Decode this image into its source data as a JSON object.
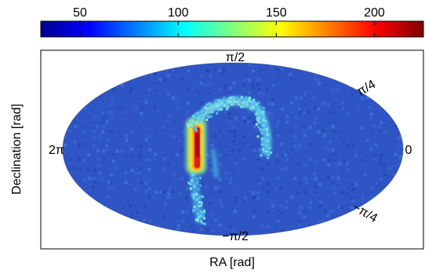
{
  "chart_data": {
    "type": "heatmap",
    "projection": "mollweide",
    "title": "",
    "xlabel": "RA [rad]",
    "ylabel": "Declination [rad]",
    "colorbar": {
      "orientation": "horizontal",
      "placement": "top",
      "colormap": "jet",
      "range": [
        30,
        225
      ],
      "ticks": [
        50,
        100,
        150,
        200
      ],
      "tick_labels": [
        "50",
        "100",
        "150",
        "200"
      ]
    },
    "annotations": {
      "dec_top": "π/2",
      "dec_upper": "π/4",
      "ra_left": "2π",
      "ra_right": "0",
      "dec_lower": "−π/4",
      "dec_bottom": "−π/2"
    },
    "background_value": 55,
    "features": [
      {
        "name": "bright-vertical-ridge",
        "ra_range_rad": [
          4.2,
          4.35
        ],
        "dec_range_rad": [
          -0.55,
          0.6
        ],
        "peak_value": 225
      },
      {
        "name": "arc",
        "ra_center_rad": 3.6,
        "dec_top_rad": 0.7,
        "value_range": [
          80,
          130
        ]
      },
      {
        "name": "lower-tail",
        "ra_center_rad": 4.0,
        "dec_range_rad": [
          -1.1,
          -0.5
        ],
        "value_range": [
          70,
          110
        ]
      }
    ]
  }
}
